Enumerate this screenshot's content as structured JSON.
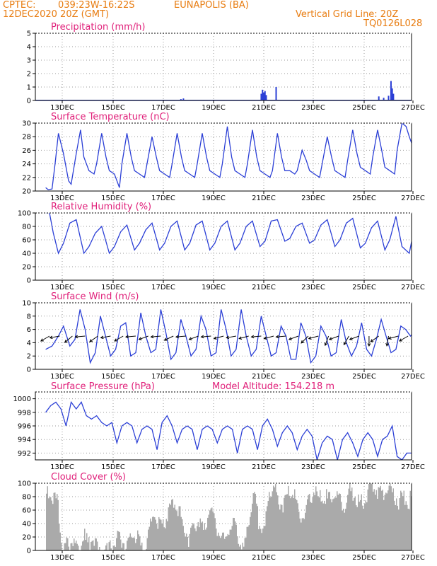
{
  "header": {
    "source": "CPTEC:",
    "coords": "039:23W-16:22S",
    "station": "EUNAPOLIS (BA)",
    "datetime": "12DEC2020 20Z (GMT)",
    "grid_note": "Vertical Grid Line: 20Z",
    "run_code": "TQ0126L028"
  },
  "colors": {
    "header": "#e87c10",
    "title": "#e0207a",
    "series": "#2b3fd6",
    "cloud": "#aaaaaa",
    "grid": "#999999"
  },
  "chart_data": [
    {
      "type": "bar",
      "title": "Precipitation (mm/h)",
      "ylim": [
        0,
        5
      ],
      "yticks": [
        0,
        1,
        2,
        3,
        4,
        5
      ],
      "xticks": [
        "13DEC",
        "15DEC",
        "17DEC",
        "19DEC",
        "21DEC",
        "23DEC",
        "25DEC",
        "27DEC"
      ],
      "xrange_days": [
        12.35,
        27.0
      ],
      "x": [
        16.8,
        17.7,
        17.8,
        20.9,
        20.95,
        21.0,
        21.05,
        21.1,
        21.5,
        25.6,
        25.8,
        26.0,
        26.1,
        26.15,
        26.2
      ],
      "values": [
        0.05,
        0.1,
        0.15,
        0.5,
        0.8,
        0.6,
        0.7,
        0.4,
        1.0,
        0.3,
        0.2,
        0.35,
        1.45,
        0.9,
        0.5
      ]
    },
    {
      "type": "line",
      "title": "Surface Temperature (nC)",
      "ylim": [
        20,
        30
      ],
      "yticks": [
        20,
        22,
        24,
        26,
        28,
        30
      ],
      "xticks": [
        "13DEC",
        "15DEC",
        "17DEC",
        "19DEC",
        "21DEC",
        "23DEC",
        "25DEC",
        "27DEC"
      ],
      "xrange_days": [
        12.35,
        27.0
      ],
      "x": [
        12.35,
        12.45,
        12.6,
        12.72,
        12.85,
        13.05,
        13.25,
        13.35,
        13.55,
        13.72,
        13.85,
        14.05,
        14.25,
        14.35,
        14.55,
        14.72,
        14.85,
        15.05,
        15.25,
        15.35,
        15.55,
        15.72,
        15.85,
        16.05,
        16.25,
        16.35,
        16.55,
        16.72,
        16.85,
        17.05,
        17.25,
        17.35,
        17.55,
        17.72,
        17.85,
        18.05,
        18.25,
        18.35,
        18.55,
        18.72,
        18.85,
        19.05,
        19.25,
        19.35,
        19.55,
        19.72,
        19.85,
        20.05,
        20.25,
        20.35,
        20.55,
        20.72,
        20.85,
        21.05,
        21.25,
        21.35,
        21.55,
        21.72,
        21.85,
        22.05,
        22.25,
        22.35,
        22.55,
        22.72,
        22.85,
        23.05,
        23.25,
        23.35,
        23.55,
        23.72,
        23.85,
        24.05,
        24.25,
        24.35,
        24.55,
        24.72,
        24.85,
        25.05,
        25.25,
        25.35,
        25.55,
        25.72,
        25.85,
        26.05,
        26.25,
        26.35,
        26.55,
        26.72,
        26.85,
        27.0
      ],
      "values": [
        20.5,
        20.2,
        20.3,
        24,
        28.5,
        25.5,
        21.5,
        21,
        25.5,
        29,
        25,
        23,
        22.5,
        24,
        28.5,
        25,
        23,
        22.5,
        20.5,
        24,
        28.5,
        25,
        23,
        22.5,
        22,
        24,
        28,
        25,
        23,
        22.5,
        22,
        24,
        28.5,
        25,
        23,
        22.5,
        22,
        24,
        28.5,
        25,
        23,
        22.5,
        22,
        24,
        29.5,
        25,
        23,
        22.5,
        22,
        24,
        29,
        25,
        23,
        22.5,
        22,
        23,
        28.5,
        25,
        23,
        23,
        22.5,
        23,
        26,
        24.5,
        23,
        22.5,
        22,
        24,
        28,
        25,
        23,
        22.5,
        22,
        24.5,
        29,
        25.5,
        23.5,
        23,
        22.5,
        25,
        29,
        26,
        23.5,
        23,
        22.5,
        26,
        30,
        29.5,
        28,
        26.5
      ]
    },
    {
      "type": "line",
      "title": "Relative Humidity (%)",
      "ylim": [
        0,
        100
      ],
      "yticks": [
        0,
        20,
        40,
        60,
        80,
        100
      ],
      "xticks": [
        "13DEC",
        "15DEC",
        "17DEC",
        "19DEC",
        "21DEC",
        "23DEC",
        "25DEC",
        "27DEC"
      ],
      "xrange_days": [
        12.35,
        27.0
      ],
      "x": [
        12.35,
        12.5,
        12.65,
        12.85,
        13.05,
        13.3,
        13.55,
        13.85,
        14.05,
        14.3,
        14.55,
        14.85,
        15.05,
        15.3,
        15.55,
        15.85,
        16.05,
        16.3,
        16.55,
        16.85,
        17.05,
        17.3,
        17.55,
        17.85,
        18.05,
        18.3,
        18.55,
        18.85,
        19.05,
        19.3,
        19.55,
        19.85,
        20.05,
        20.3,
        20.55,
        20.85,
        21.05,
        21.3,
        21.55,
        21.85,
        22.05,
        22.3,
        22.55,
        22.85,
        23.05,
        23.3,
        23.55,
        23.85,
        24.05,
        24.3,
        24.55,
        24.85,
        25.05,
        25.3,
        25.55,
        25.85,
        26.05,
        26.3,
        26.55,
        26.85,
        27.0
      ],
      "values": [
        100,
        100,
        70,
        40,
        55,
        85,
        90,
        40,
        50,
        70,
        80,
        40,
        50,
        72,
        82,
        45,
        55,
        75,
        85,
        45,
        55,
        80,
        88,
        45,
        55,
        82,
        88,
        45,
        55,
        80,
        88,
        45,
        55,
        80,
        88,
        50,
        58,
        88,
        90,
        58,
        62,
        80,
        85,
        55,
        60,
        82,
        90,
        50,
        60,
        85,
        92,
        48,
        55,
        78,
        88,
        45,
        60,
        95,
        50,
        40,
        68
      ]
    },
    {
      "type": "line",
      "title": "Surface Wind (m/s)",
      "ylim": [
        0,
        10
      ],
      "yticks": [
        0,
        2,
        4,
        6,
        8,
        10
      ],
      "xticks": [
        "13DEC",
        "15DEC",
        "17DEC",
        "19DEC",
        "21DEC",
        "23DEC",
        "25DEC",
        "27DEC"
      ],
      "xrange_days": [
        12.35,
        27.0
      ],
      "x": [
        12.35,
        12.6,
        12.85,
        13.05,
        13.3,
        13.5,
        13.7,
        13.9,
        14.1,
        14.3,
        14.5,
        14.7,
        14.9,
        15.1,
        15.3,
        15.5,
        15.7,
        15.9,
        16.1,
        16.3,
        16.5,
        16.7,
        16.9,
        17.1,
        17.3,
        17.5,
        17.7,
        17.9,
        18.1,
        18.3,
        18.5,
        18.7,
        18.9,
        19.1,
        19.3,
        19.5,
        19.7,
        19.9,
        20.1,
        20.3,
        20.5,
        20.7,
        20.9,
        21.1,
        21.3,
        21.5,
        21.7,
        21.9,
        22.1,
        22.3,
        22.5,
        22.7,
        22.9,
        23.1,
        23.3,
        23.5,
        23.7,
        23.9,
        24.1,
        24.3,
        24.5,
        24.7,
        24.9,
        25.1,
        25.3,
        25.5,
        25.7,
        25.9,
        26.1,
        26.3,
        26.5,
        26.7,
        26.9,
        27.0
      ],
      "values": [
        3,
        3.5,
        5,
        6.5,
        3.5,
        4.5,
        9,
        6,
        1,
        2.5,
        8,
        5,
        2,
        3,
        6.5,
        7,
        2,
        2.5,
        8.5,
        5,
        2.5,
        3,
        9,
        5.5,
        1.5,
        2.5,
        7.5,
        5,
        2,
        3,
        8,
        6,
        2,
        2.5,
        9,
        6,
        2,
        3,
        9,
        5,
        2,
        3,
        8,
        5,
        2,
        2.5,
        6.5,
        5,
        1.5,
        1.5,
        7,
        5,
        1,
        2,
        6.5,
        5,
        2,
        2.5,
        7.5,
        4,
        2,
        3.5,
        7,
        3,
        2,
        4.5,
        7.5,
        5,
        2.5,
        3,
        6.5,
        6,
        5,
        5.5
      ],
      "arrows_x": [
        12.5,
        12.9,
        13.4,
        13.9,
        14.4,
        14.9,
        15.4,
        15.9,
        16.4,
        16.9,
        17.4,
        17.9,
        18.4,
        18.9,
        19.4,
        19.9,
        20.4,
        20.9,
        21.4,
        21.9,
        22.4,
        22.8,
        23.2,
        23.6,
        24.0,
        24.4,
        24.8,
        25.2,
        25.6,
        26.0,
        26.4,
        26.8
      ],
      "arrows_deg": [
        210,
        190,
        220,
        185,
        215,
        190,
        210,
        185,
        200,
        185,
        205,
        185,
        200,
        185,
        195,
        190,
        195,
        185,
        195,
        185,
        200,
        225,
        195,
        250,
        200,
        240,
        200,
        270,
        215,
        260,
        195,
        210
      ]
    },
    {
      "type": "line",
      "title": "Surface Pressure (hPa)",
      "annotation": "Model Altitude: 154.218 m",
      "ylim": [
        991,
        1001
      ],
      "yticks": [
        992,
        994,
        996,
        998,
        1000
      ],
      "xticks": [
        "13DEC",
        "15DEC",
        "17DEC",
        "19DEC",
        "21DEC",
        "23DEC",
        "25DEC",
        "27DEC"
      ],
      "xrange_days": [
        12.35,
        27.0
      ],
      "x": [
        12.35,
        12.55,
        12.75,
        12.95,
        13.15,
        13.35,
        13.55,
        13.75,
        13.95,
        14.15,
        14.35,
        14.55,
        14.75,
        14.95,
        15.15,
        15.35,
        15.55,
        15.75,
        15.95,
        16.15,
        16.35,
        16.55,
        16.75,
        16.95,
        17.15,
        17.35,
        17.55,
        17.75,
        17.95,
        18.15,
        18.35,
        18.55,
        18.75,
        18.95,
        19.15,
        19.35,
        19.55,
        19.75,
        19.95,
        20.15,
        20.35,
        20.55,
        20.75,
        20.95,
        21.15,
        21.35,
        21.55,
        21.75,
        21.95,
        22.15,
        22.35,
        22.55,
        22.75,
        22.95,
        23.15,
        23.35,
        23.55,
        23.75,
        23.95,
        24.15,
        24.35,
        24.55,
        24.75,
        24.95,
        25.15,
        25.35,
        25.55,
        25.75,
        25.95,
        26.15,
        26.35,
        26.55,
        26.75,
        26.95,
        27.0
      ],
      "values": [
        998,
        999,
        999.5,
        998.5,
        996,
        999.5,
        998.5,
        999.5,
        997.5,
        997,
        997.5,
        996.5,
        996,
        996.5,
        993.5,
        996,
        996.5,
        996,
        993.5,
        995.5,
        996,
        995.5,
        992.5,
        996.5,
        997.5,
        996,
        993.5,
        995.5,
        996,
        995.5,
        992.5,
        995.5,
        996,
        995.5,
        993.5,
        995.5,
        996,
        995.5,
        992,
        995.5,
        996,
        995.5,
        992.5,
        996,
        997,
        995.5,
        993,
        995,
        996,
        995,
        992.5,
        994.5,
        995.5,
        994.5,
        991,
        993.5,
        994.5,
        994,
        991,
        994,
        995,
        993.5,
        991.5,
        994,
        995,
        994,
        991.5,
        994,
        994.5,
        996,
        991.5,
        991,
        992,
        992,
        993.5
      ]
    },
    {
      "type": "area",
      "title": "Cloud Cover (%)",
      "ylim": [
        0,
        100
      ],
      "yticks": [
        0,
        20,
        40,
        60,
        80,
        100
      ],
      "xticks": [
        "13DEC",
        "15DEC",
        "17DEC",
        "19DEC",
        "21DEC",
        "23DEC",
        "25DEC",
        "27DEC"
      ],
      "xrange_days": [
        12.35,
        27.0
      ],
      "x": [
        12.35,
        12.5,
        12.65,
        12.8,
        13.0,
        13.2,
        13.4,
        13.6,
        13.8,
        14.0,
        14.2,
        14.4,
        14.6,
        14.8,
        15.0,
        15.2,
        15.4,
        15.6,
        15.8,
        16.0,
        16.2,
        16.4,
        16.6,
        16.8,
        17.0,
        17.2,
        17.4,
        17.6,
        17.8,
        18.0,
        18.2,
        18.4,
        18.6,
        18.8,
        19.0,
        19.2,
        19.4,
        19.6,
        19.8,
        20.0,
        20.2,
        20.4,
        20.6,
        20.8,
        21.0,
        21.2,
        21.4,
        21.6,
        21.8,
        22.0,
        22.2,
        22.4,
        22.6,
        22.8,
        23.0,
        23.2,
        23.4,
        23.6,
        23.8,
        24.0,
        24.2,
        24.4,
        24.6,
        24.8,
        25.0,
        25.2,
        25.4,
        25.6,
        25.8,
        26.0,
        26.2,
        26.4,
        26.6,
        26.8,
        27.0
      ],
      "values": [
        90,
        95,
        85,
        80,
        5,
        15,
        20,
        10,
        30,
        15,
        25,
        5,
        10,
        5,
        20,
        25,
        20,
        15,
        35,
        20,
        5,
        35,
        60,
        50,
        40,
        70,
        80,
        65,
        40,
        25,
        45,
        55,
        30,
        70,
        50,
        35,
        20,
        40,
        45,
        20,
        5,
        60,
        90,
        45,
        30,
        95,
        100,
        80,
        75,
        95,
        90,
        60,
        55,
        80,
        95,
        85,
        90,
        80,
        90,
        85,
        70,
        95,
        90,
        75,
        85,
        95,
        100,
        95,
        95,
        100,
        90,
        80,
        85,
        80,
        85
      ]
    }
  ]
}
